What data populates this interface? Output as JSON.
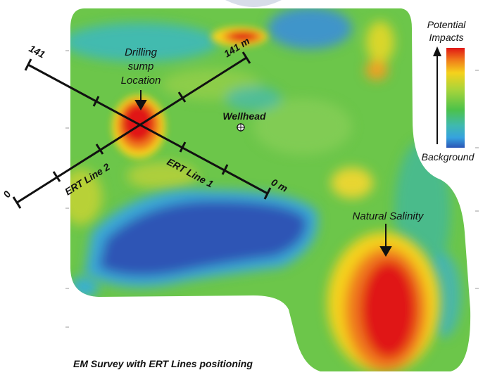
{
  "map": {
    "caption": "EM Survey with ERT Lines positioning",
    "annotations": {
      "drilling_1": "Drilling",
      "drilling_2": "sump",
      "drilling_3": "Location",
      "wellhead": "Wellhead",
      "natural_salinity": "Natural Salinity",
      "ert_line_1": "ERT Line 1",
      "ert_line_2": "ERT Line 2",
      "line1_start": "0 m",
      "line1_end": "141",
      "line2_start": "0",
      "line2_end": "141 m"
    }
  },
  "legend": {
    "title_1": "Potential",
    "title_2": "Impacts",
    "bottom": "Background",
    "colors_top_to_bottom": [
      "#e01515",
      "#f07a1a",
      "#f5d21c",
      "#a8d43a",
      "#4cc24a",
      "#3fb9b0",
      "#36a2df",
      "#2b56b6"
    ]
  },
  "colors": {
    "background_green": "#6cc64a",
    "low_blue": "#2d55b5",
    "high_red": "#e01a1a",
    "survey_line": "#111111"
  }
}
